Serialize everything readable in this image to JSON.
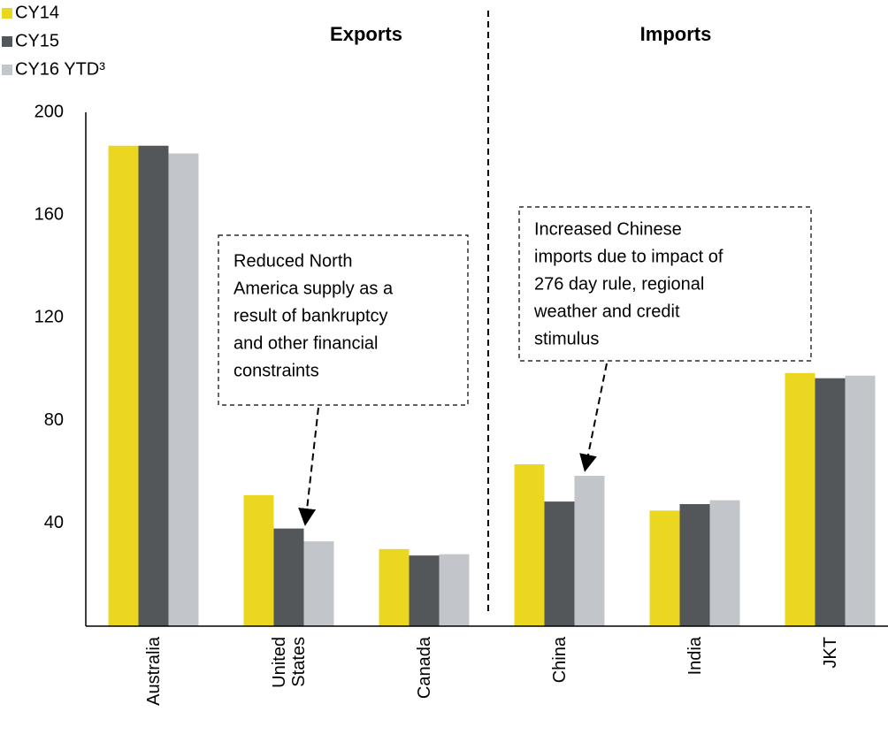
{
  "chart_data": {
    "type": "bar",
    "section_titles": [
      "Exports",
      "Imports"
    ],
    "categories": [
      "Australia",
      "United States",
      "Canada",
      "China",
      "India",
      "JKT"
    ],
    "series": [
      {
        "name": "CY14",
        "color": "#ebd71f",
        "values": [
          187,
          51,
          30,
          63,
          45,
          98.5
        ]
      },
      {
        "name": "CY15",
        "color": "#54575a",
        "values": [
          187,
          38,
          27.5,
          48.5,
          47.5,
          96.5
        ]
      },
      {
        "name": "CY16 YTD³",
        "color": "#c2c6ca",
        "values": [
          184,
          33,
          28,
          58.5,
          49,
          97.5
        ]
      }
    ],
    "ylim": [
      0,
      200
    ],
    "yticks": [
      40,
      80,
      120,
      160,
      200
    ],
    "grid": false,
    "legend": "top-left",
    "annotations": [
      {
        "lines": [
          "Reduced North",
          "America supply as a",
          "result of bankruptcy",
          "and other financial",
          "constraints"
        ]
      },
      {
        "lines": [
          "Increased Chinese",
          "imports due to impact of",
          "276 day rule, regional",
          "weather and credit",
          "stimulus"
        ]
      }
    ]
  }
}
